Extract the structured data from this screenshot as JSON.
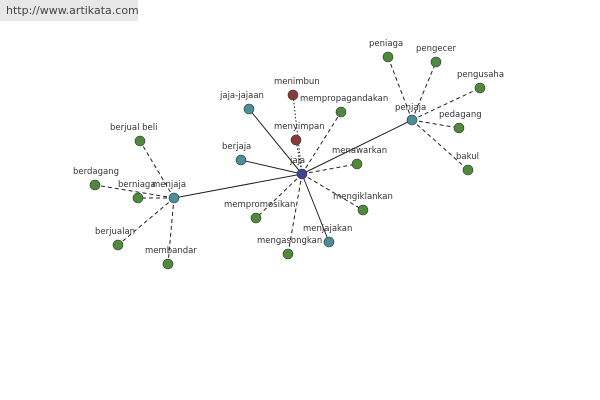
{
  "watermark": "http://www.artikata.com",
  "nodes": [
    {
      "label": "jaja"
    },
    {
      "label": "penjaja"
    },
    {
      "label": "menjaja"
    },
    {
      "label": "jaja-jajaan"
    },
    {
      "label": "berjaja"
    },
    {
      "label": "menjajakan"
    },
    {
      "label": "menimbun"
    },
    {
      "label": "menyimpan"
    },
    {
      "label": "mempropagandakan"
    },
    {
      "label": "menawarkan"
    },
    {
      "label": "mengiklankan"
    },
    {
      "label": "mengasongkan"
    },
    {
      "label": "mempromosikan"
    },
    {
      "label": "peniaga"
    },
    {
      "label": "pengecer"
    },
    {
      "label": "pengusaha"
    },
    {
      "label": "pedagang"
    },
    {
      "label": "bakul"
    },
    {
      "label": "berjual beli"
    },
    {
      "label": "berdagang"
    },
    {
      "label": "berniaga"
    },
    {
      "label": "berjualan"
    },
    {
      "label": "membandar"
    }
  ]
}
